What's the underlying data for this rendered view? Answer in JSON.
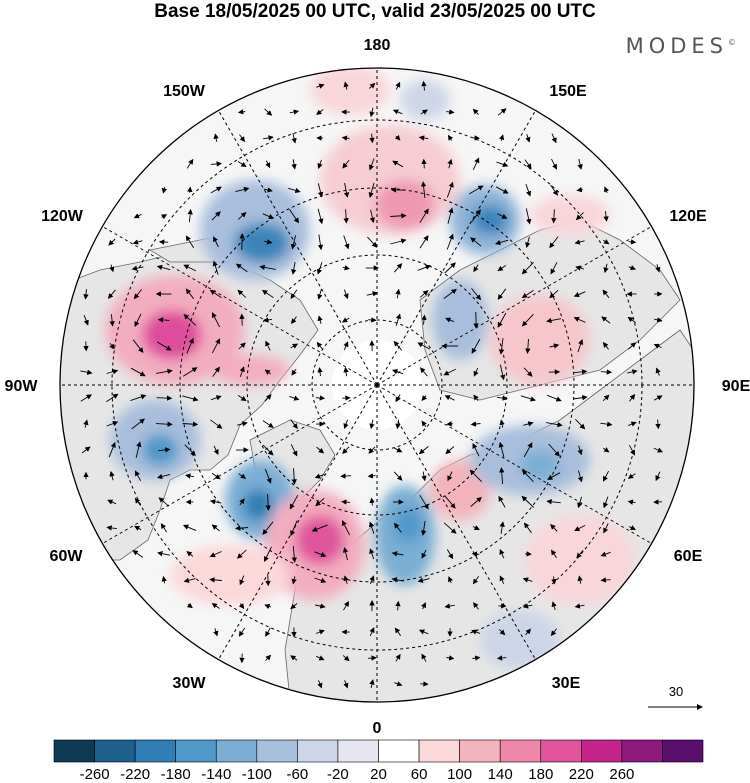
{
  "title": "Base 18/05/2025 00 UTC, valid 23/05/2025 00 UTC",
  "brand": "MODES",
  "brand_mark": "©",
  "lon_labels": {
    "l180": "180",
    "l150e": "150E",
    "l120e": "120E",
    "l90e": "90E",
    "l60e": "60E",
    "l30e": "30E",
    "l0": "0",
    "l30w": "30W",
    "l60w": "60W",
    "l90w": "90W",
    "l120w": "120W",
    "l150w": "150W"
  },
  "vector_ref_label": "30",
  "colorbar": {
    "ticks": [
      "-260",
      "-220",
      "-180",
      "-140",
      "-100",
      "-60",
      "-20",
      "20",
      "60",
      "100",
      "140",
      "180",
      "220",
      "260"
    ],
    "colors": [
      "#0f3a55",
      "#1f5f8b",
      "#2f7fb6",
      "#4f98c9",
      "#7aaed4",
      "#a6c0dd",
      "#cdd5e8",
      "#e6e6f2",
      "#ffffff",
      "#fbd8da",
      "#f4b3bc",
      "#ef87a8",
      "#e0559c",
      "#c4238c",
      "#8e1a7e",
      "#5a0f6e"
    ]
  },
  "map_features": {
    "projection": "north-polar-stereographic",
    "land_fill": "#e8e8e8",
    "anomaly_centers": [
      {
        "sign": "negative",
        "strength": -200,
        "lon": -150
      },
      {
        "sign": "negative",
        "strength": -160,
        "lon": 160
      },
      {
        "sign": "negative",
        "strength": -140,
        "lon": 130
      },
      {
        "sign": "positive",
        "strength": 200,
        "lon": -110
      },
      {
        "sign": "positive",
        "strength": 180,
        "lon": -30
      },
      {
        "sign": "positive",
        "strength": 140,
        "lon": 175
      },
      {
        "sign": "negative",
        "strength": -180,
        "lon": -40
      },
      {
        "sign": "negative",
        "strength": -160,
        "lon": -70
      },
      {
        "sign": "negative",
        "strength": -140,
        "lon": 5
      },
      {
        "sign": "negative",
        "strength": -120,
        "lon": 60
      },
      {
        "sign": "positive",
        "strength": 120,
        "lon": 35
      },
      {
        "sign": "positive",
        "strength": 100,
        "lon": 110
      }
    ]
  }
}
